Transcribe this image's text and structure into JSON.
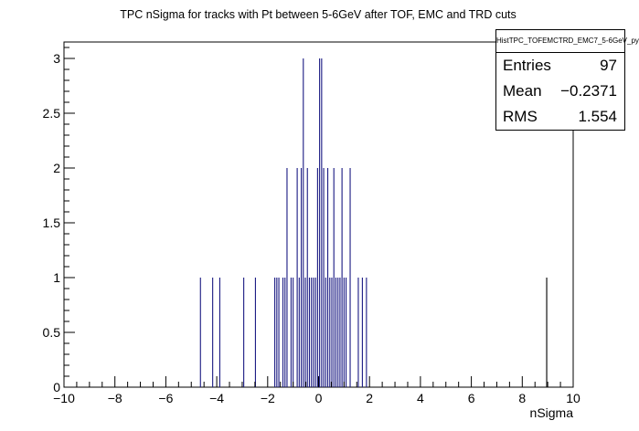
{
  "chart_data": {
    "type": "bar",
    "title": "TPC nSigma for tracks with Pt between 5-6GeV after TOF, EMC and TRD cuts",
    "xlabel": "nSigma",
    "ylabel": "",
    "xlim": [
      -10,
      10
    ],
    "ylim": [
      0,
      3.15
    ],
    "x_ticks": [
      "−10",
      "−8",
      "−6",
      "−4",
      "−2",
      "0",
      "2",
      "4",
      "6",
      "8",
      "10"
    ],
    "y_ticks": [
      "0",
      "0.5",
      "1",
      "1.5",
      "2",
      "2.5",
      "3"
    ],
    "bin_width": 0.04,
    "bins": [
      {
        "x": -4.66,
        "y": 1
      },
      {
        "x": -4.18,
        "y": 1
      },
      {
        "x": -3.9,
        "y": 1
      },
      {
        "x": -2.96,
        "y": 1
      },
      {
        "x": -2.5,
        "y": 1
      },
      {
        "x": -1.74,
        "y": 1
      },
      {
        "x": -1.66,
        "y": 1
      },
      {
        "x": -1.58,
        "y": 1
      },
      {
        "x": -1.42,
        "y": 1
      },
      {
        "x": -1.34,
        "y": 1
      },
      {
        "x": -1.26,
        "y": 2
      },
      {
        "x": -1.1,
        "y": 1
      },
      {
        "x": -1.02,
        "y": 1
      },
      {
        "x": -0.86,
        "y": 2
      },
      {
        "x": -0.78,
        "y": 1
      },
      {
        "x": -0.7,
        "y": 2
      },
      {
        "x": -0.62,
        "y": 3
      },
      {
        "x": -0.54,
        "y": 1
      },
      {
        "x": -0.46,
        "y": 2
      },
      {
        "x": -0.38,
        "y": 1
      },
      {
        "x": -0.3,
        "y": 1
      },
      {
        "x": -0.22,
        "y": 1
      },
      {
        "x": -0.14,
        "y": 1
      },
      {
        "x": -0.06,
        "y": 2
      },
      {
        "x": 0.02,
        "y": 3
      },
      {
        "x": 0.1,
        "y": 3
      },
      {
        "x": 0.18,
        "y": 2
      },
      {
        "x": 0.26,
        "y": 1
      },
      {
        "x": 0.34,
        "y": 2
      },
      {
        "x": 0.42,
        "y": 1
      },
      {
        "x": 0.5,
        "y": 1
      },
      {
        "x": 0.58,
        "y": 2
      },
      {
        "x": 0.66,
        "y": 1
      },
      {
        "x": 0.74,
        "y": 1
      },
      {
        "x": 0.82,
        "y": 1
      },
      {
        "x": 0.9,
        "y": 2
      },
      {
        "x": 0.98,
        "y": 1
      },
      {
        "x": 1.06,
        "y": 1
      },
      {
        "x": 1.22,
        "y": 2
      },
      {
        "x": 1.54,
        "y": 1
      },
      {
        "x": 1.7,
        "y": 1
      },
      {
        "x": 1.86,
        "y": 1
      },
      {
        "x": 8.94,
        "y": 1
      }
    ],
    "colors": {
      "fill": "#1c1c84",
      "line": "#000000",
      "background": "#ffffff"
    },
    "grid": false,
    "legend": "top-right",
    "stats": {
      "title": "HistTPC_TOFEMCTRD_EMC7_5-6GeV_py",
      "rows": [
        {
          "label": "Entries",
          "value": "97"
        },
        {
          "label": "Mean",
          "value": "−0.2371"
        },
        {
          "label": "RMS",
          "value": "1.554"
        }
      ]
    }
  }
}
